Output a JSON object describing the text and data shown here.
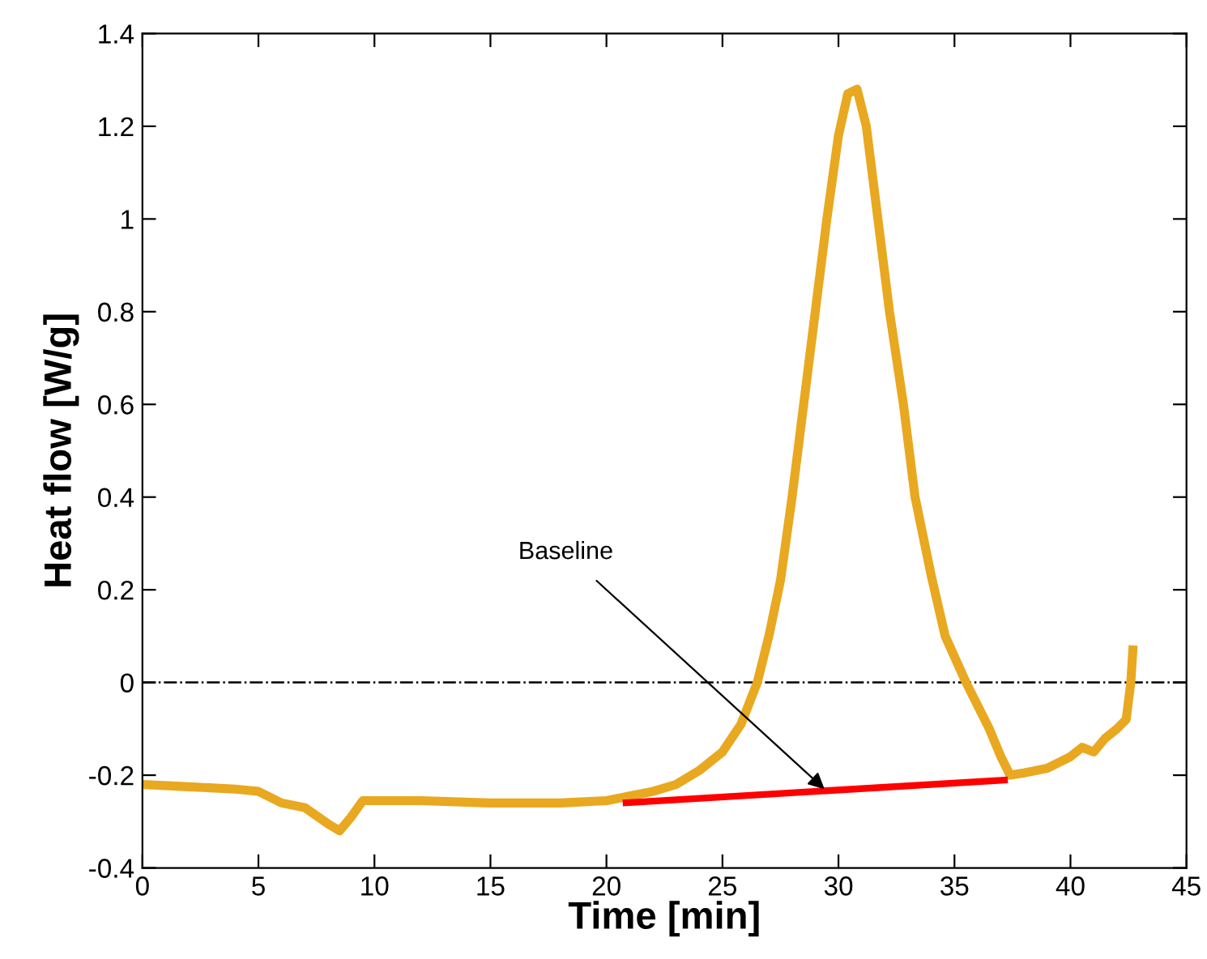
{
  "chart_data": {
    "type": "line",
    "xlabel": "Time [min]",
    "ylabel": "Heat flow [W/g]",
    "xlim": [
      0,
      45
    ],
    "xticks": [
      0,
      5,
      10,
      15,
      20,
      25,
      30,
      35,
      40,
      45
    ],
    "ylim": [
      -0.4,
      1.4
    ],
    "yticks": [
      -0.4,
      -0.2,
      0,
      0.2,
      0.4,
      0.6,
      0.8,
      1,
      1.2,
      1.4
    ],
    "grid": false,
    "legend": false,
    "marker": "none",
    "line_style": "solid",
    "series": [
      {
        "color": "#e8a820",
        "x": [
          0,
          2,
          4,
          5,
          6,
          7,
          8,
          8.5,
          9,
          9.5,
          12,
          15,
          18,
          20,
          21,
          22,
          23,
          24,
          25,
          25.8,
          26.5,
          27,
          27.5,
          28,
          28.5,
          29,
          29.5,
          30,
          30.4,
          30.8,
          31.2,
          31.7,
          32.2,
          32.8,
          33.3,
          34,
          34.6,
          35.5,
          36.5,
          37,
          37.4,
          38,
          39,
          40,
          40.5,
          41,
          41.5,
          42,
          42.4,
          42.6,
          42.7
        ],
        "values": [
          -0.22,
          -0.225,
          -0.23,
          -0.235,
          -0.26,
          -0.27,
          -0.305,
          -0.32,
          -0.29,
          -0.255,
          -0.255,
          -0.26,
          -0.26,
          -0.255,
          -0.245,
          -0.235,
          -0.22,
          -0.19,
          -0.15,
          -0.09,
          0,
          0.1,
          0.22,
          0.4,
          0.6,
          0.8,
          1.0,
          1.18,
          1.27,
          1.28,
          1.2,
          1.0,
          0.8,
          0.6,
          0.4,
          0.23,
          0.1,
          0,
          -0.1,
          -0.16,
          -0.2,
          -0.195,
          -0.185,
          -0.16,
          -0.14,
          -0.15,
          -0.12,
          -0.1,
          -0.08,
          0,
          0.08
        ]
      },
      {
        "color": "#ff0000",
        "x": [
          20.7,
          37.3
        ],
        "values": [
          -0.26,
          -0.21
        ]
      }
    ],
    "ref_lines": [
      {
        "axis": "y",
        "value": 0,
        "color": "#000000",
        "line_style": "dashdot"
      }
    ],
    "annotations": [
      {
        "text": "Baseline",
        "x": 29.4,
        "y": -0.23
      }
    ]
  }
}
